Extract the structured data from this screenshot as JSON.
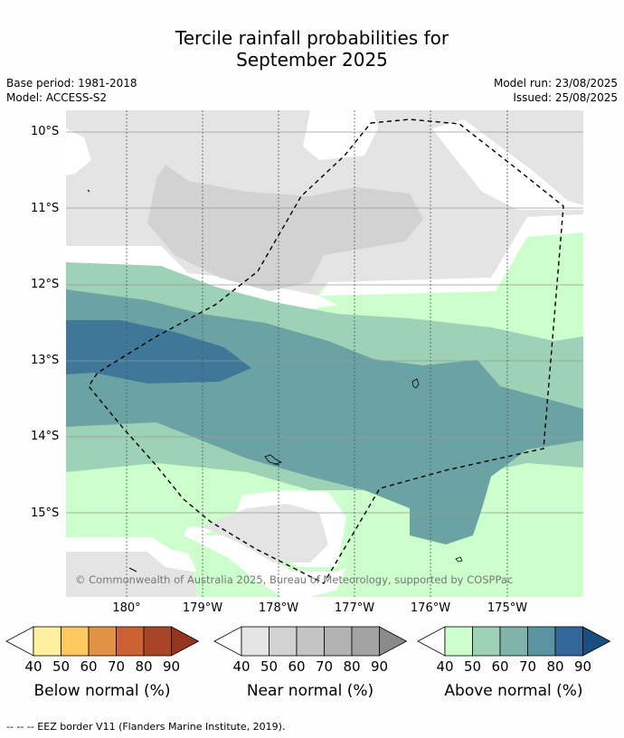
{
  "title": {
    "line1": "Tercile rainfall probabilities for",
    "line2": "September 2025"
  },
  "meta": {
    "base_period": "Base period: 1981-2018",
    "model": "Model: ACCESS-S2",
    "model_run": "Model run: 23/08/2025",
    "issued": "Issued: 25/08/2025"
  },
  "map": {
    "lat_labels": [
      "10°S",
      "11°S",
      "12°S",
      "13°S",
      "14°S",
      "15°S"
    ],
    "lon_labels": [
      "180°",
      "179°W",
      "178°W",
      "177°W",
      "176°W",
      "175°W"
    ],
    "copyright": "© Commonwealth of Australia 2025, Bureau of Meteorology, supported by COSPPac",
    "colors": {
      "near_40": "#e4e4e4",
      "near_50": "#d2d2d2",
      "above_40": "#ccffcc",
      "above_50": "#9dd2b7",
      "above_60": "#6ba3a5",
      "above_70": "#3f7799",
      "white": "#ffffff"
    }
  },
  "colorbars": [
    {
      "title": "Below normal (%)",
      "ticks": [
        "40",
        "50",
        "60",
        "70",
        "80",
        "90"
      ],
      "colors": [
        "#ffffff",
        "#fff0a0",
        "#fec860",
        "#e29244",
        "#ce6133",
        "#aa4428",
        "#96351f"
      ]
    },
    {
      "title": "Near normal (%)",
      "ticks": [
        "40",
        "50",
        "60",
        "70",
        "80",
        "90"
      ],
      "colors": [
        "#ffffff",
        "#e4e4e4",
        "#d2d2d2",
        "#c4c4c4",
        "#b3b3b3",
        "#a2a2a2",
        "#8a8a8a"
      ]
    },
    {
      "title": "Above normal (%)",
      "ticks": [
        "40",
        "50",
        "60",
        "70",
        "80",
        "90"
      ],
      "colors": [
        "#ffffff",
        "#ccffcc",
        "#9dd2b7",
        "#80b3aa",
        "#5a94a0",
        "#336699",
        "#1a4d80"
      ]
    }
  ],
  "footer": "-- -- -- EEZ border V11 (Flanders Marine Institute, 2019)."
}
